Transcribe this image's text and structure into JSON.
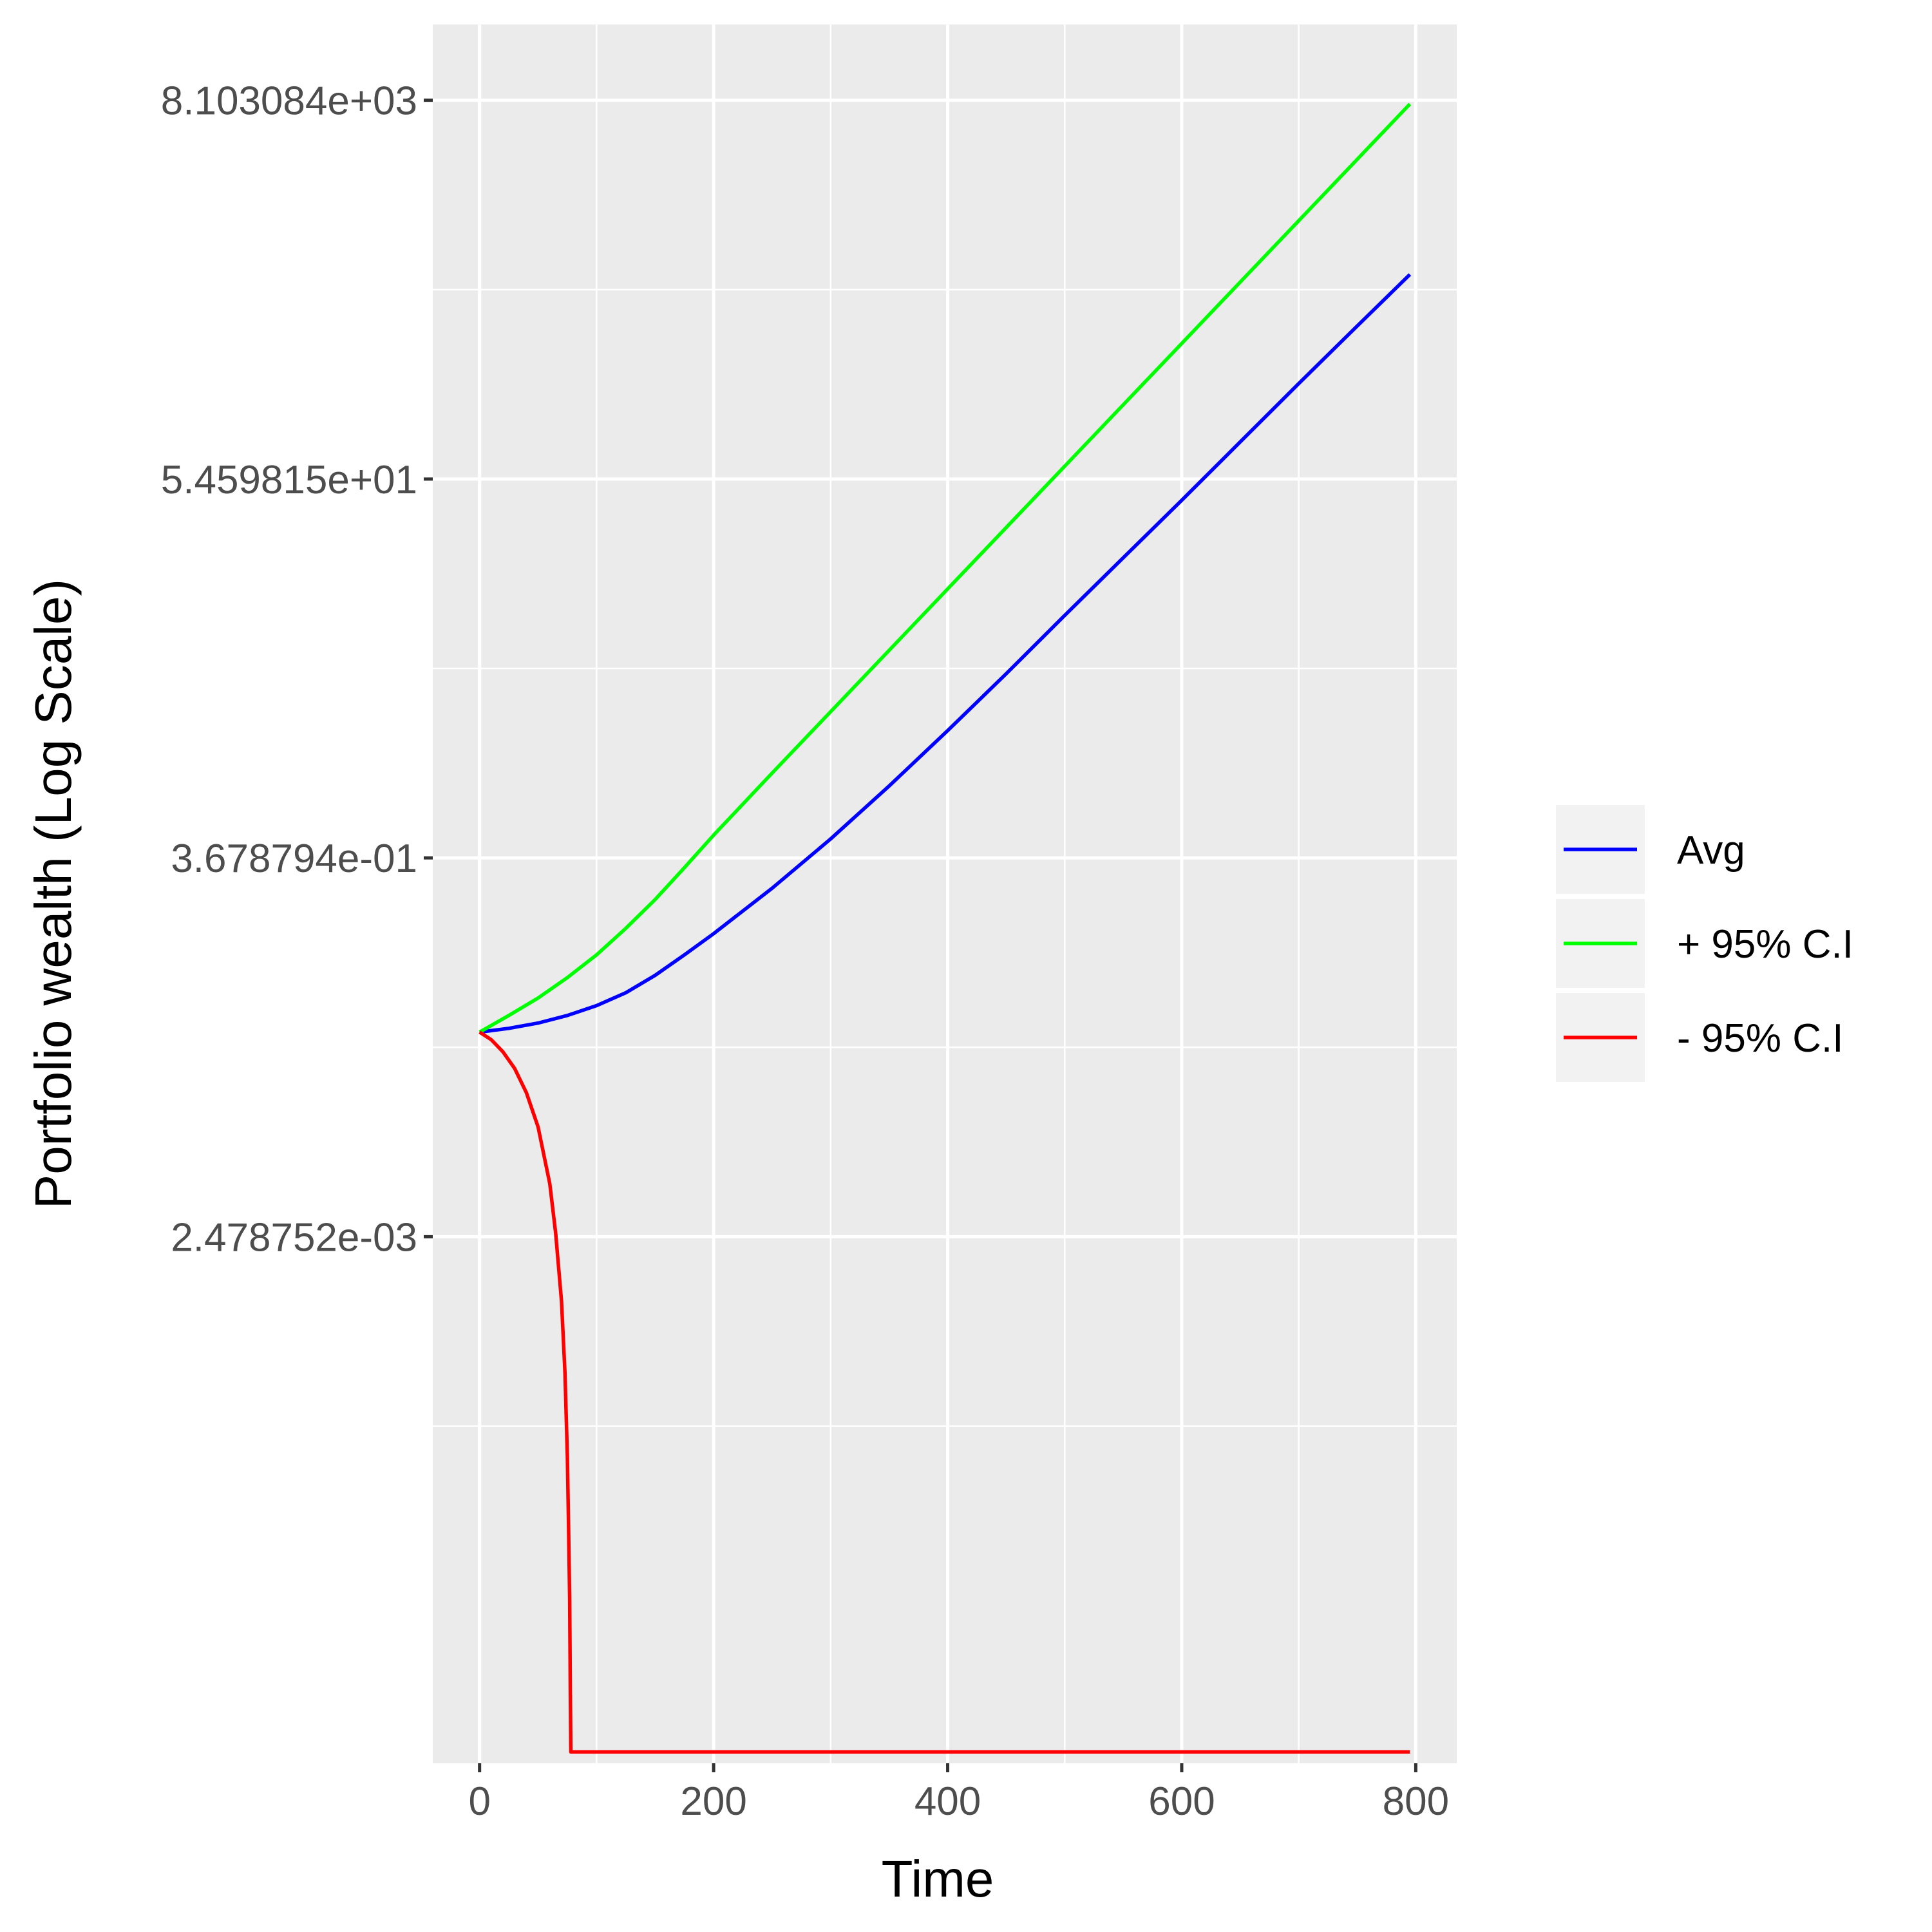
{
  "chart_data": {
    "type": "line",
    "xlabel": "Time",
    "ylabel": "Portfolio wealth (Log Scale)",
    "y_scale": "log",
    "xlim": [
      -40,
      835
    ],
    "ylim_ln": [
      -12.95,
      10.0
    ],
    "x_ticks": [
      0,
      200,
      400,
      600,
      800
    ],
    "x_tick_labels": [
      "0",
      "200",
      "400",
      "600",
      "800"
    ],
    "y_ticks_ln": [
      -6,
      -1,
      4,
      9
    ],
    "y_tick_labels": [
      "2.478752e-03",
      "3.678794e-01",
      "5.459815e+01",
      "8.103084e+03"
    ],
    "grid": true,
    "legend_position": "right",
    "series": [
      {
        "name": "Avg",
        "color": "#0000ff",
        "x": [
          0,
          25,
          50,
          75,
          100,
          125,
          150,
          175,
          200,
          250,
          300,
          350,
          400,
          450,
          500,
          550,
          600,
          650,
          700,
          750,
          795
        ],
        "y_ln": [
          -3.3,
          -3.25,
          -3.18,
          -3.08,
          -2.95,
          -2.78,
          -2.55,
          -2.28,
          -2.0,
          -1.4,
          -0.75,
          -0.05,
          0.68,
          1.43,
          2.2,
          2.96,
          3.72,
          4.49,
          5.26,
          6.02,
          6.7
        ]
      },
      {
        "name": "+ 95% C.I",
        "color": "#00ff00",
        "x": [
          0,
          25,
          50,
          75,
          100,
          125,
          150,
          175,
          200,
          250,
          300,
          350,
          400,
          450,
          500,
          550,
          600,
          650,
          700,
          750,
          795
        ],
        "y_ln": [
          -3.3,
          -3.08,
          -2.85,
          -2.58,
          -2.28,
          -1.93,
          -1.55,
          -1.13,
          -0.7,
          0.12,
          0.93,
          1.74,
          2.55,
          3.36,
          4.17,
          4.98,
          5.79,
          6.6,
          7.41,
          8.22,
          8.95
        ]
      },
      {
        "name": "- 95% C.I",
        "color": "#ff0000",
        "x": [
          0,
          10,
          20,
          30,
          40,
          50,
          60,
          65,
          70,
          73,
          75,
          76,
          77,
          77.5,
          78,
          795
        ],
        "y_ln": [
          -3.3,
          -3.4,
          -3.56,
          -3.78,
          -4.1,
          -4.55,
          -5.3,
          -5.95,
          -6.85,
          -7.8,
          -8.9,
          -9.8,
          -10.8,
          -11.9,
          -12.8,
          -12.8
        ]
      }
    ]
  }
}
